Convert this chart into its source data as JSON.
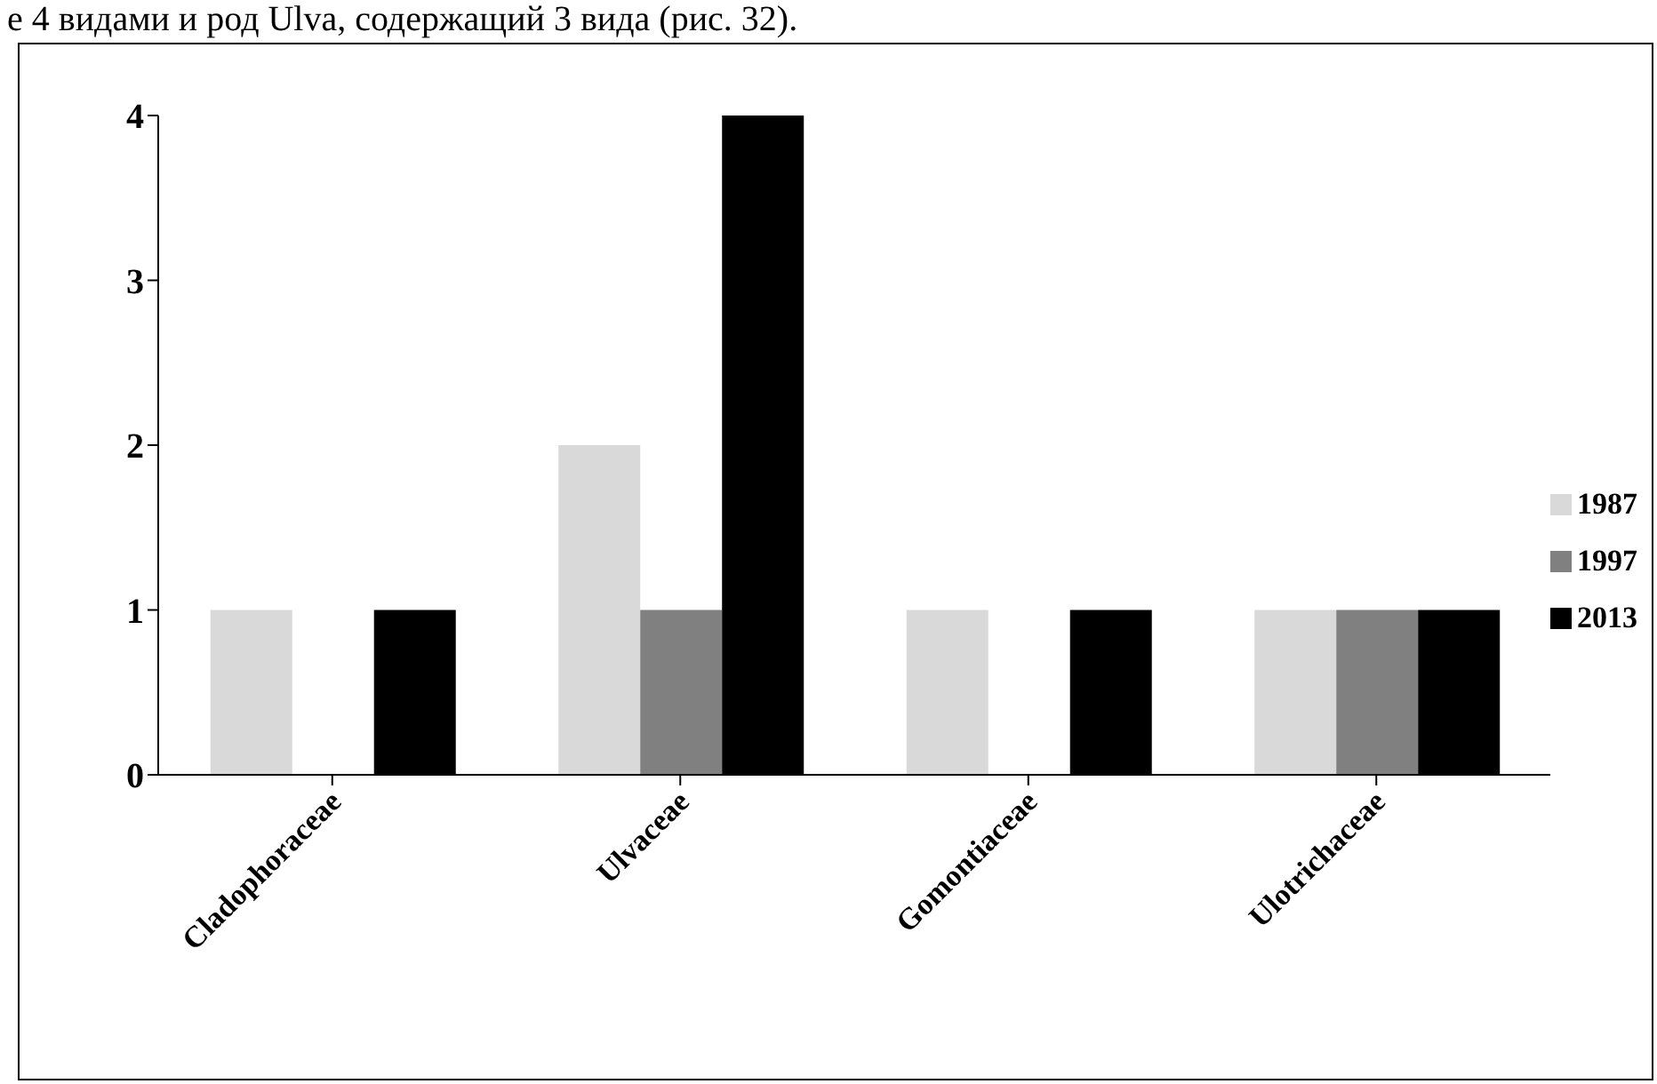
{
  "chart_data": {
    "type": "bar",
    "annotations": [
      "е 4 видами и род Ulva, содержащий 3 вида (рис. 32)."
    ],
    "categories": [
      "Cladophoraceae",
      "Ulvaceae",
      "Gomontiaceae",
      "Ulotrichaceae"
    ],
    "series": [
      {
        "name": "1987",
        "color": "#d9d9d9",
        "values": [
          1,
          2,
          1,
          1
        ]
      },
      {
        "name": "1997",
        "color": "#808080",
        "values": [
          0,
          1,
          0,
          1
        ]
      },
      {
        "name": "2013",
        "color": "#000000",
        "values": [
          1,
          4,
          1,
          1
        ]
      }
    ],
    "ylim": [
      0,
      4
    ],
    "yticks": [
      0,
      1,
      2,
      3,
      4
    ],
    "grid": false,
    "legend": "right"
  }
}
